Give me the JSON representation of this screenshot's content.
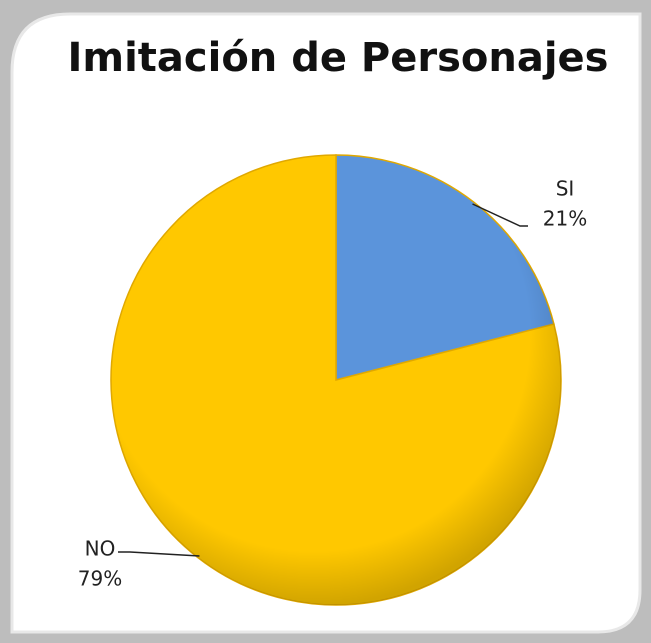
{
  "chart_data": {
    "type": "pie",
    "title": "Imitación de Personajes",
    "categories": [
      "SI",
      "NO"
    ],
    "values": [
      21,
      79
    ],
    "value_labels": [
      "21%",
      "79%"
    ],
    "colors": [
      "#5b94db",
      "#ffc800"
    ]
  }
}
